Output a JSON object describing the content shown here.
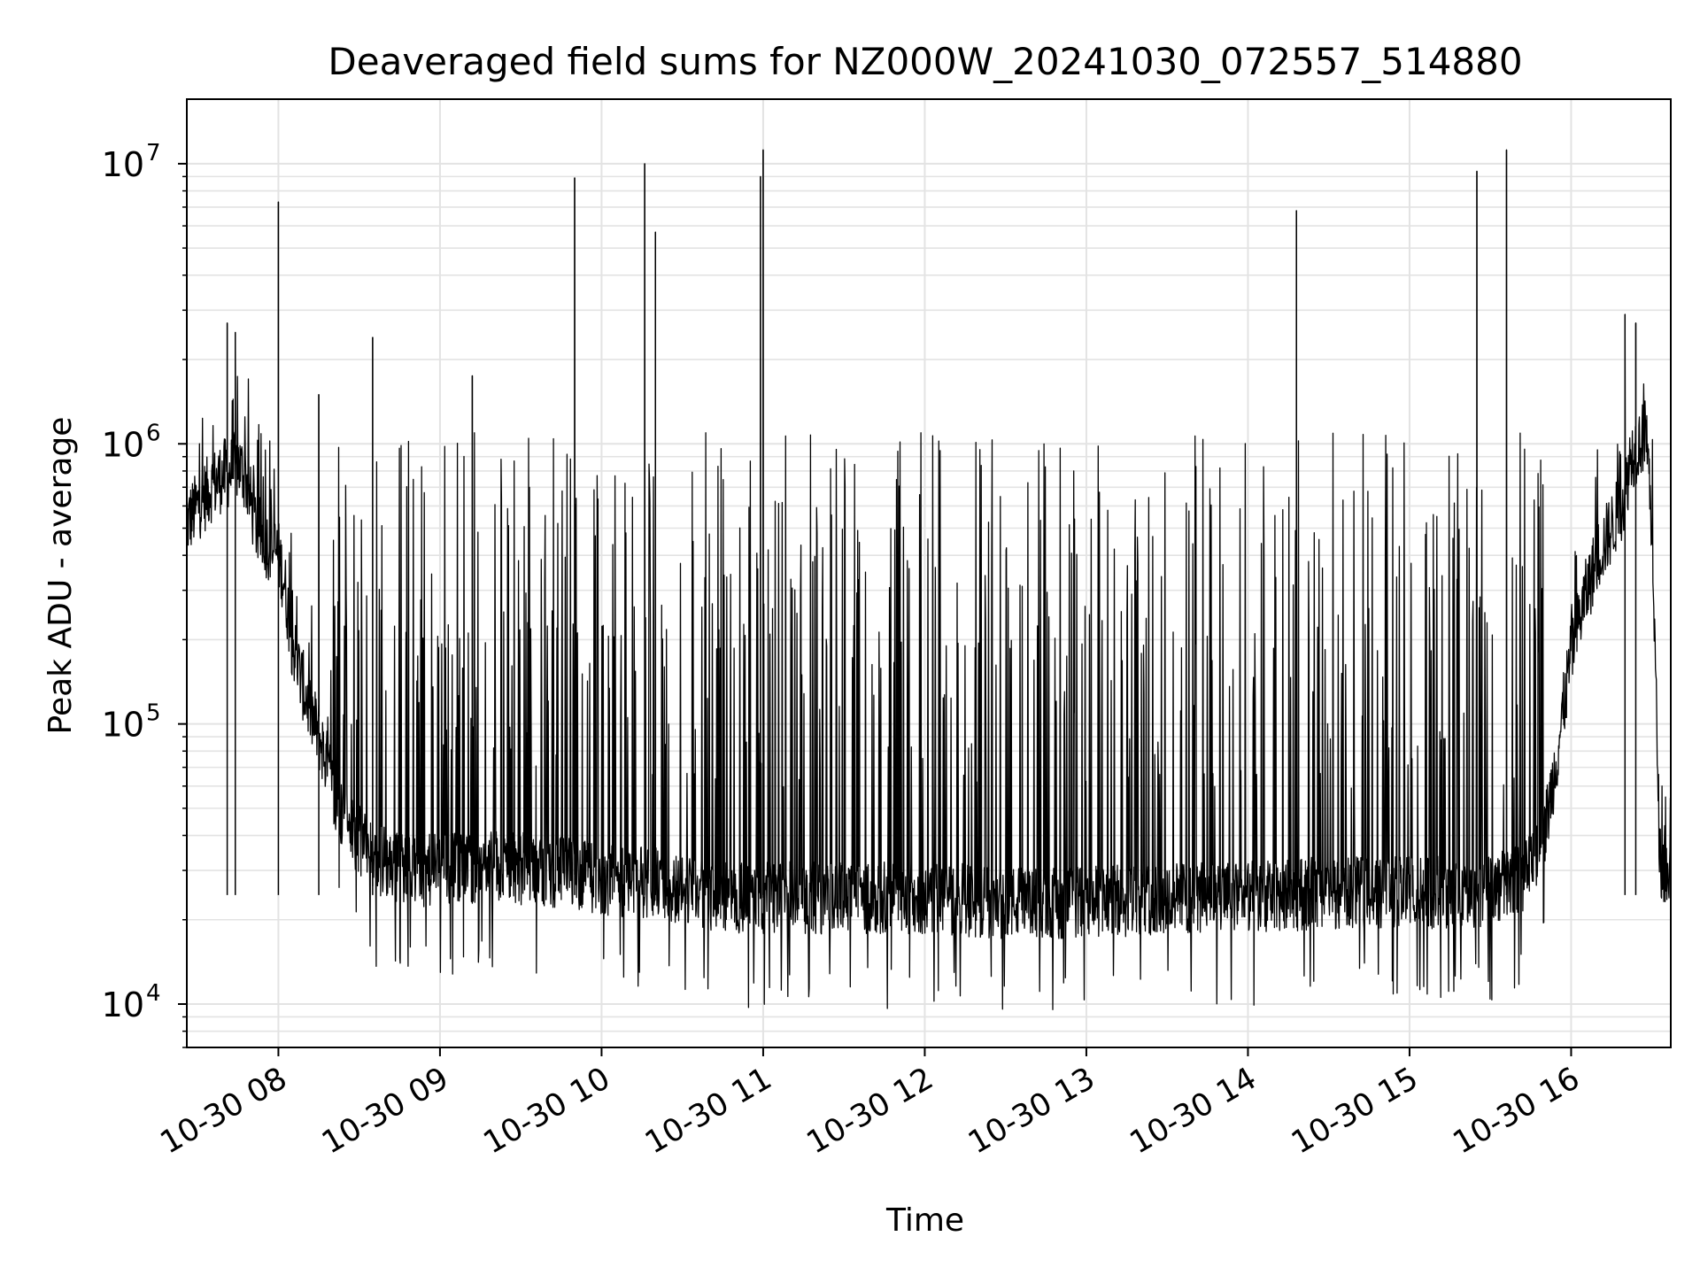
{
  "chart_data": {
    "type": "line",
    "title": "Deaveraged field sums for NZ000W_20241030_072557_514880",
    "xlabel": "Time",
    "ylabel": "Peak ADU - average",
    "yscale": "log",
    "ylim": [
      7000,
      17000000
    ],
    "xlim": [
      "2024-10-30 07:26",
      "2024-10-30 16:37"
    ],
    "grid": true,
    "line_color": "#000000",
    "x_ticks": [
      {
        "value": "2024-10-30 08:00",
        "label": "10-30 08"
      },
      {
        "value": "2024-10-30 09:00",
        "label": "10-30 09"
      },
      {
        "value": "2024-10-30 10:00",
        "label": "10-30 10"
      },
      {
        "value": "2024-10-30 11:00",
        "label": "10-30 11"
      },
      {
        "value": "2024-10-30 12:00",
        "label": "10-30 12"
      },
      {
        "value": "2024-10-30 13:00",
        "label": "10-30 13"
      },
      {
        "value": "2024-10-30 14:00",
        "label": "10-30 14"
      },
      {
        "value": "2024-10-30 15:00",
        "label": "10-30 15"
      },
      {
        "value": "2024-10-30 16:00",
        "label": "10-30 16"
      }
    ],
    "y_ticks": [
      {
        "value": 10000,
        "base": "10",
        "exp": "4"
      },
      {
        "value": 100000,
        "base": "10",
        "exp": "5"
      },
      {
        "value": 1000000,
        "base": "10",
        "exp": "6"
      },
      {
        "value": 10000000,
        "base": "10",
        "exp": "7"
      }
    ],
    "series": [
      {
        "x": [
          "2024-10-30 07:26",
          "2024-10-30 07:30",
          "2024-10-30 07:35",
          "2024-10-30 07:40",
          "2024-10-30 07:43",
          "2024-10-30 07:45",
          "2024-10-30 07:48",
          "2024-10-30 07:50",
          "2024-10-30 07:52",
          "2024-10-30 07:55",
          "2024-10-30 07:58",
          "2024-10-30 08:00",
          "2024-10-30 08:02",
          "2024-10-30 08:05",
          "2024-10-30 08:08",
          "2024-10-30 08:12",
          "2024-10-30 08:16",
          "2024-10-30 08:20",
          "2024-10-30 08:25",
          "2024-10-30 08:30",
          "2024-10-30 08:35",
          "2024-10-30 08:40",
          "2024-10-30 08:50",
          "2024-10-30 09:00",
          "2024-10-30 09:20",
          "2024-10-30 09:40",
          "2024-10-30 10:00",
          "2024-10-30 10:20",
          "2024-10-30 10:40",
          "2024-10-30 11:00",
          "2024-10-30 11:30",
          "2024-10-30 12:00",
          "2024-10-30 12:30",
          "2024-10-30 13:00",
          "2024-10-30 13:30",
          "2024-10-30 14:00",
          "2024-10-30 14:30",
          "2024-10-30 15:00",
          "2024-10-30 15:30",
          "2024-10-30 15:45",
          "2024-10-30 15:50",
          "2024-10-30 15:55",
          "2024-10-30 16:00",
          "2024-10-30 16:05",
          "2024-10-30 16:10",
          "2024-10-30 16:15",
          "2024-10-30 16:20",
          "2024-10-30 16:22",
          "2024-10-30 16:25",
          "2024-10-30 16:28",
          "2024-10-30 16:30",
          "2024-10-30 16:33",
          "2024-10-30 16:37"
        ],
        "y": [
          520000,
          600000,
          700000,
          780000,
          800000,
          850000,
          750000,
          600000,
          500000,
          450000,
          420000,
          400000,
          330000,
          200000,
          150000,
          110000,
          85000,
          60000,
          45000,
          38000,
          34000,
          32000,
          30000,
          30000,
          31000,
          30000,
          28000,
          27000,
          24000,
          24000,
          24000,
          24000,
          23000,
          23000,
          24000,
          24000,
          25000,
          25000,
          25000,
          30000,
          40000,
          80000,
          180000,
          280000,
          400000,
          500000,
          650000,
          900000,
          1000000,
          1100000,
          500000,
          32000,
          28000
        ]
      }
    ],
    "spikes": [
      {
        "x": "2024-10-30 07:41",
        "y": 2700000
      },
      {
        "x": "2024-10-30 07:44",
        "y": 2500000
      },
      {
        "x": "2024-10-30 08:00",
        "y": 7300000
      },
      {
        "x": "2024-10-30 08:15",
        "y": 1500000
      },
      {
        "x": "2024-10-30 08:35",
        "y": 2400000
      },
      {
        "x": "2024-10-30 09:12",
        "y": 1750000
      },
      {
        "x": "2024-10-30 09:50",
        "y": 8900000
      },
      {
        "x": "2024-10-30 10:16",
        "y": 10000000
      },
      {
        "x": "2024-10-30 10:20",
        "y": 5700000
      },
      {
        "x": "2024-10-30 10:59",
        "y": 9000000
      },
      {
        "x": "2024-10-30 11:00",
        "y": 11200000
      },
      {
        "x": "2024-10-30 14:18",
        "y": 6800000
      },
      {
        "x": "2024-10-30 15:25",
        "y": 9400000
      },
      {
        "x": "2024-10-30 15:36",
        "y": 11200000
      },
      {
        "x": "2024-10-30 16:20",
        "y": 2900000
      },
      {
        "x": "2024-10-30 16:24",
        "y": 2700000
      }
    ]
  }
}
